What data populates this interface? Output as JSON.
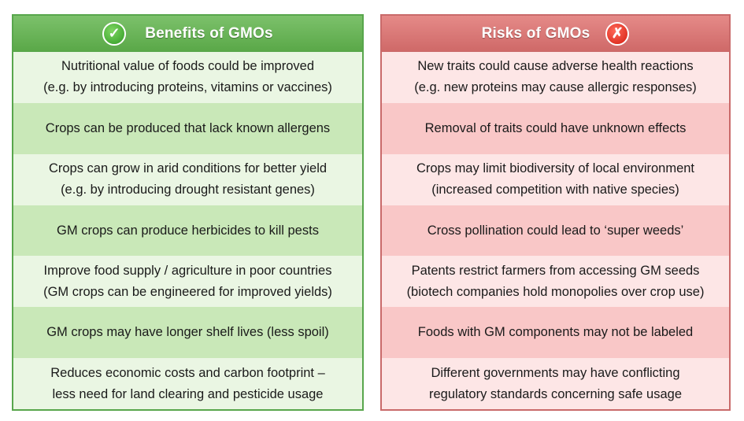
{
  "benefits": {
    "title": "Benefits of GMOs",
    "icon": "check-mark-icon",
    "icon_glyph": "✓",
    "accent": "#5aa848",
    "rows": [
      {
        "line1": "Nutritional value of foods could be improved",
        "line2": "(e.g. by introducing proteins, vitamins or vaccines)"
      },
      {
        "line1": "Crops can be produced that lack known allergens",
        "line2": ""
      },
      {
        "line1": "Crops can grow in arid conditions for better yield",
        "line2": "(e.g. by introducing drought resistant genes)"
      },
      {
        "line1": "GM crops can produce herbicides to kill pests",
        "line2": ""
      },
      {
        "line1": "Improve food supply / agriculture in poor countries",
        "line2": "(GM crops can be engineered for improved yields)"
      },
      {
        "line1": "GM crops may have longer shelf lives (less spoil)",
        "line2": ""
      },
      {
        "line1": "Reduces economic costs and carbon footprint –",
        "line2": "less need for land clearing and pesticide usage"
      }
    ]
  },
  "risks": {
    "title": "Risks of GMOs",
    "icon": "cross-mark-icon",
    "icon_glyph": "✗",
    "accent": "#cf6968",
    "rows": [
      {
        "line1": "New traits could cause adverse health reactions",
        "line2": "(e.g. new proteins may cause allergic responses)"
      },
      {
        "line1": "Removal of traits could have unknown effects",
        "line2": ""
      },
      {
        "line1": "Crops may limit biodiversity of local environment",
        "line2": "(increased competition with native species)"
      },
      {
        "line1": "Cross pollination could lead to ‘super weeds’",
        "line2": ""
      },
      {
        "line1": "Patents restrict farmers from accessing GM seeds",
        "line2": "(biotech companies hold monopolies over crop use)"
      },
      {
        "line1": "Foods with GM components may not be labeled",
        "line2": ""
      },
      {
        "line1": "Different governments may have conflicting",
        "line2": "regulatory standards concerning safe usage"
      }
    ]
  }
}
